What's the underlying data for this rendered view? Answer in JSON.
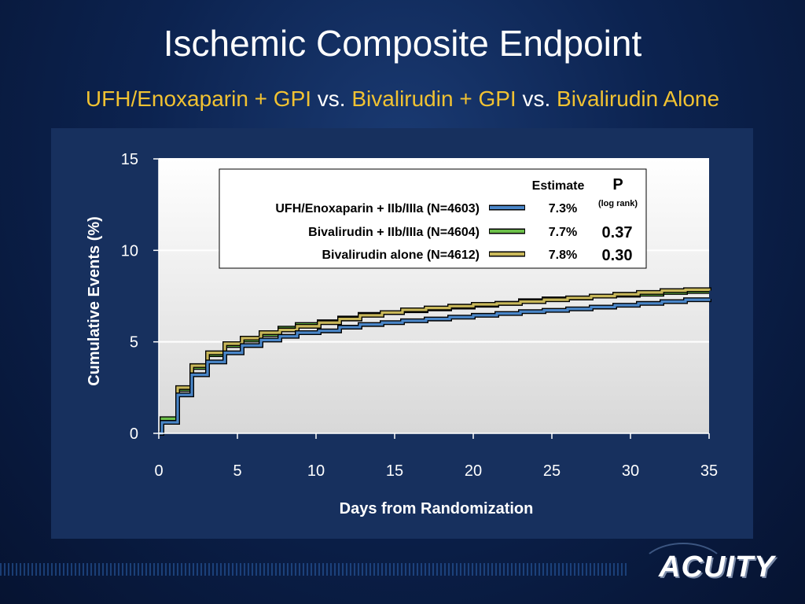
{
  "slide": {
    "title": "Ischemic Composite Endpoint",
    "subtitle": {
      "part1": "UFH/Enoxaparin + GPI",
      "vs1": " vs. ",
      "part2": "Bivalirudin + GPI",
      "vs2": " vs. ",
      "part3": "Bivalirudin Alone"
    },
    "logo_text": "ACUITY"
  },
  "colors": {
    "ufh": "#4a86c8",
    "biv_gpi": "#6cc04a",
    "biv_alone": "#c9b85a",
    "plot_bg_top": "#ffffff",
    "plot_bg_bottom": "#d8d8d8"
  },
  "legend": {
    "estimate_header": "Estimate",
    "p_header": "P",
    "p_sub": "(log rank)",
    "rows": [
      {
        "label": "UFH/Enoxaparin + IIb/IIIa (N=4603)",
        "estimate": "7.3%",
        "p": ""
      },
      {
        "label": "Bivalirudin + IIb/IIIa (N=4604)",
        "estimate": "7.7%",
        "p": "0.37"
      },
      {
        "label": "Bivalirudin alone (N=4612)",
        "estimate": "7.8%",
        "p": "0.30"
      }
    ]
  },
  "chart_data": {
    "type": "line",
    "step": true,
    "xlabel": "Days from Randomization",
    "ylabel": "Cumulative Events (%)",
    "xlim": [
      0,
      35
    ],
    "ylim": [
      0,
      15
    ],
    "xticks": [
      0,
      5,
      10,
      15,
      20,
      25,
      30,
      35
    ],
    "yticks": [
      0,
      5,
      10,
      15
    ],
    "grid": true,
    "legend_position": "top-right",
    "series": [
      {
        "name": "UFH/Enoxaparin + IIb/IIIa (N=4603)",
        "x": [
          0,
          0.2,
          1.2,
          2.1,
          3.1,
          4.2,
          5.3,
          6.5,
          7.7,
          8.8,
          10.2,
          11.5,
          12.8,
          14.2,
          15.5,
          17.0,
          18.5,
          20.0,
          21.5,
          23.0,
          24.5,
          26.0,
          27.5,
          29.0,
          30.5,
          32.0,
          33.5,
          35
        ],
        "y": [
          0.0,
          0.6,
          2.1,
          3.2,
          3.9,
          4.4,
          4.8,
          5.1,
          5.3,
          5.5,
          5.6,
          5.8,
          5.95,
          6.05,
          6.15,
          6.25,
          6.35,
          6.45,
          6.55,
          6.65,
          6.72,
          6.8,
          6.9,
          7.0,
          7.1,
          7.2,
          7.3,
          7.35
        ]
      },
      {
        "name": "Bivalirudin + IIb/IIIa (N=4604)",
        "x": [
          0,
          0.2,
          1.2,
          2.1,
          3.1,
          4.2,
          5.3,
          6.5,
          7.7,
          8.8,
          10.2,
          11.5,
          12.8,
          14.2,
          15.5,
          17.0,
          18.5,
          20.0,
          21.5,
          23.0,
          24.5,
          26.0,
          27.5,
          29.0,
          30.5,
          32.0,
          33.5,
          35
        ],
        "y": [
          0.0,
          0.8,
          2.4,
          3.6,
          4.3,
          4.8,
          5.1,
          5.4,
          5.75,
          5.95,
          6.1,
          6.3,
          6.5,
          6.6,
          6.7,
          6.8,
          6.9,
          7.0,
          7.1,
          7.25,
          7.35,
          7.4,
          7.5,
          7.55,
          7.6,
          7.7,
          7.75,
          7.75
        ]
      },
      {
        "name": "Bivalirudin alone (N=4612)",
        "x": [
          0,
          0.2,
          1.2,
          2.1,
          3.1,
          4.2,
          5.3,
          6.5,
          7.7,
          8.8,
          10.2,
          11.5,
          12.8,
          14.2,
          15.5,
          17.0,
          18.5,
          20.0,
          21.5,
          23.0,
          24.5,
          26.0,
          27.5,
          29.0,
          30.5,
          32.0,
          33.5,
          35
        ],
        "y": [
          0.0,
          0.6,
          2.5,
          3.7,
          4.4,
          4.9,
          5.2,
          5.5,
          5.65,
          5.85,
          6.05,
          6.25,
          6.45,
          6.6,
          6.75,
          6.85,
          6.95,
          7.05,
          7.1,
          7.2,
          7.3,
          7.4,
          7.5,
          7.6,
          7.7,
          7.8,
          7.85,
          7.8
        ]
      }
    ]
  }
}
